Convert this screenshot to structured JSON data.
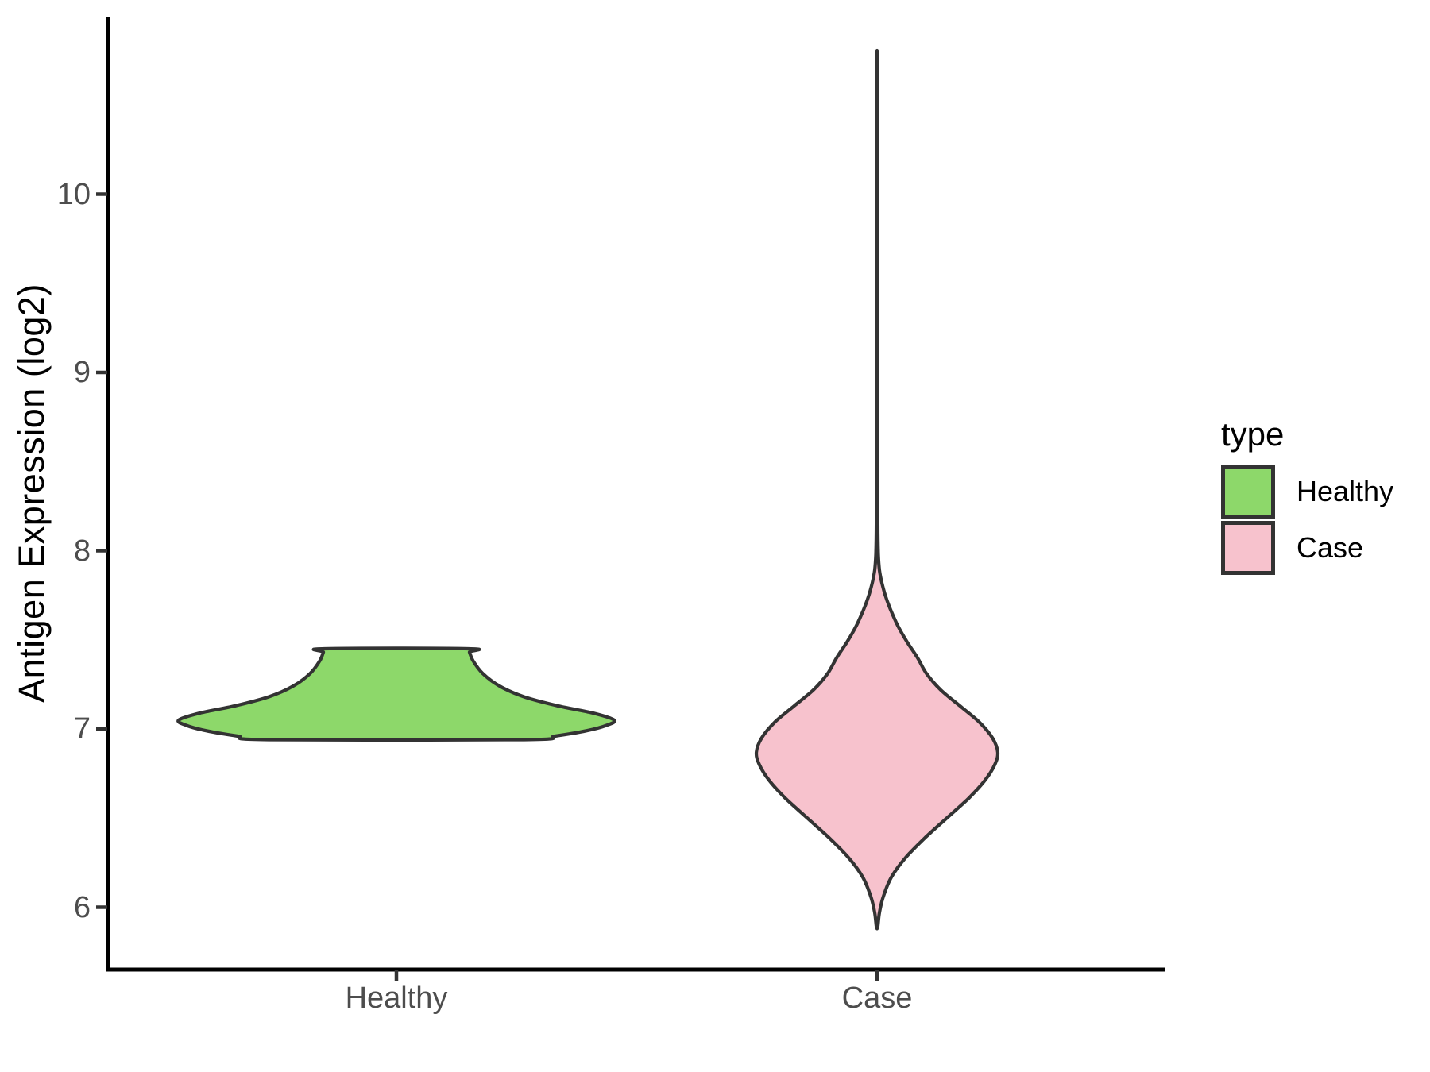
{
  "chart_data": {
    "type": "violin",
    "title": "",
    "xlabel": "",
    "ylabel": "Antigen Expression (log2)",
    "categories": [
      "Healthy",
      "Case"
    ],
    "y_ticks": [
      6,
      7,
      8,
      9,
      10
    ],
    "ylim": [
      5.65,
      11.0
    ],
    "grid": false,
    "legend": {
      "title": "type",
      "position": "right",
      "entries": [
        {
          "label": "Healthy",
          "color": "#8DD86A"
        },
        {
          "label": "Case",
          "color": "#F7C2CD"
        }
      ]
    },
    "colors": {
      "outline": "#333333",
      "axis_line": "#000000",
      "tick_mark": "#333333",
      "tick_text": "#4D4D4D",
      "title_text": "#000000"
    },
    "series": [
      {
        "name": "Healthy",
        "fill": "#8DD86A",
        "data_min": 6.94,
        "data_max": 7.45,
        "peak_value": 7.05,
        "max_halfwidth_units": 0.453,
        "profile": [
          [
            6.94,
            0.266
          ],
          [
            6.96,
            0.33
          ],
          [
            6.99,
            0.396
          ],
          [
            7.02,
            0.437
          ],
          [
            7.05,
            0.453
          ],
          [
            7.09,
            0.408
          ],
          [
            7.13,
            0.335
          ],
          [
            7.18,
            0.266
          ],
          [
            7.24,
            0.215
          ],
          [
            7.31,
            0.18
          ],
          [
            7.38,
            0.16
          ],
          [
            7.43,
            0.152
          ],
          [
            7.45,
            0.15
          ]
        ]
      },
      {
        "name": "Case",
        "fill": "#F7C2CD",
        "data_min": 5.89,
        "data_max": 10.77,
        "peak_value": 6.87,
        "max_halfwidth_units": 0.251,
        "profile": [
          [
            5.89,
            0.0013
          ],
          [
            5.97,
            0.005
          ],
          [
            6.06,
            0.013
          ],
          [
            6.17,
            0.03
          ],
          [
            6.28,
            0.06
          ],
          [
            6.39,
            0.1
          ],
          [
            6.5,
            0.145
          ],
          [
            6.61,
            0.19
          ],
          [
            6.71,
            0.224
          ],
          [
            6.8,
            0.245
          ],
          [
            6.87,
            0.251
          ],
          [
            6.95,
            0.24
          ],
          [
            7.04,
            0.212
          ],
          [
            7.13,
            0.172
          ],
          [
            7.22,
            0.132
          ],
          [
            7.31,
            0.103
          ],
          [
            7.4,
            0.084
          ],
          [
            7.49,
            0.062
          ],
          [
            7.58,
            0.043
          ],
          [
            7.67,
            0.028
          ],
          [
            7.75,
            0.017
          ],
          [
            7.82,
            0.01
          ],
          [
            7.89,
            0.005
          ],
          [
            7.98,
            0.0025
          ],
          [
            8.15,
            0.0015
          ],
          [
            8.6,
            0.0013
          ],
          [
            9.2,
            0.0013
          ],
          [
            9.9,
            0.0013
          ],
          [
            10.5,
            0.0013
          ],
          [
            10.77,
            0.0013
          ]
        ]
      }
    ]
  }
}
